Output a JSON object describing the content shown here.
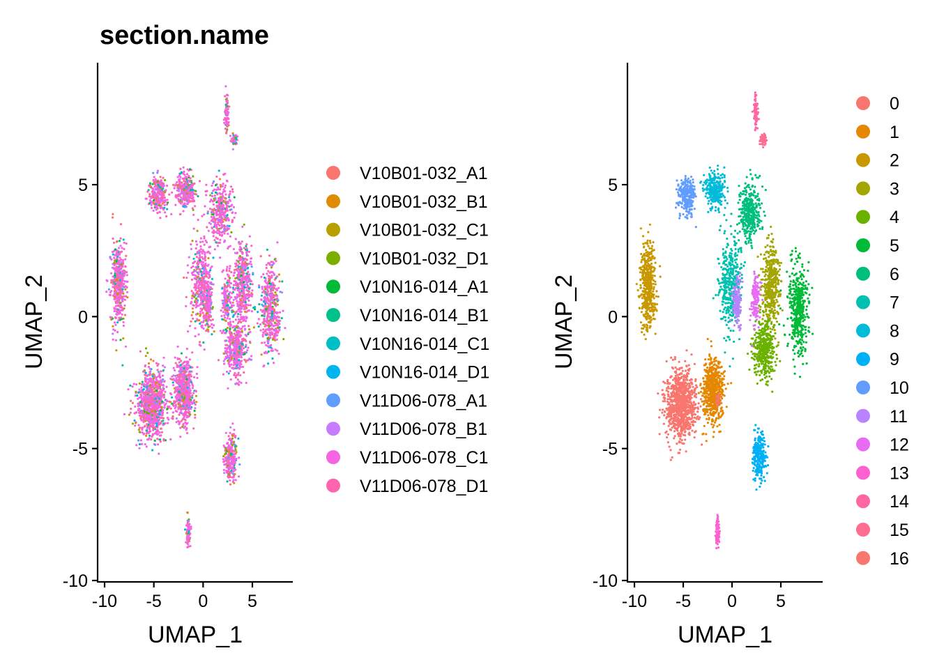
{
  "chart_data": [
    {
      "type": "scatter",
      "title": "section.name",
      "xlabel": "UMAP_1",
      "ylabel": "UMAP_2",
      "xticks": [
        -10,
        -5,
        0,
        5
      ],
      "yticks": [
        -10,
        -5,
        0,
        5
      ],
      "xlim": [
        -10.5,
        9.2
      ],
      "ylim": [
        -10.1,
        9.3
      ],
      "grid": false,
      "legend_position": "right",
      "series": [
        {
          "name": "V10B01-032_A1",
          "color": "#F8766D"
        },
        {
          "name": "V10B01-032_B1",
          "color": "#DE8C00"
        },
        {
          "name": "V10B01-032_C1",
          "color": "#B79F00"
        },
        {
          "name": "V10B01-032_D1",
          "color": "#7CAE00"
        },
        {
          "name": "V10N16-014_A1",
          "color": "#00BA38"
        },
        {
          "name": "V10N16-014_B1",
          "color": "#00C08B"
        },
        {
          "name": "V10N16-014_C1",
          "color": "#00BFC4"
        },
        {
          "name": "V10N16-014_D1",
          "color": "#00B4F0"
        },
        {
          "name": "V11D06-078_A1",
          "color": "#619CFF"
        },
        {
          "name": "V11D06-078_B1",
          "color": "#C77CFF"
        },
        {
          "name": "V11D06-078_C1",
          "color": "#F564E3"
        },
        {
          "name": "V11D06-078_D1",
          "color": "#FF64B0"
        }
      ]
    },
    {
      "type": "scatter",
      "title": "",
      "xlabel": "UMAP_1",
      "ylabel": "UMAP_2",
      "xticks": [
        -10,
        -5,
        0,
        5
      ],
      "yticks": [
        -10,
        -5,
        0,
        5
      ],
      "xlim": [
        -10.5,
        9.2
      ],
      "ylim": [
        -10.1,
        9.3
      ],
      "grid": false,
      "legend_position": "right",
      "series": [
        {
          "name": "0",
          "color": "#F8766D"
        },
        {
          "name": "1",
          "color": "#E58700"
        },
        {
          "name": "2",
          "color": "#C99800"
        },
        {
          "name": "3",
          "color": "#A3A500"
        },
        {
          "name": "4",
          "color": "#6BB100"
        },
        {
          "name": "5",
          "color": "#00BA38"
        },
        {
          "name": "6",
          "color": "#00BF7D"
        },
        {
          "name": "7",
          "color": "#00C0AF"
        },
        {
          "name": "8",
          "color": "#00BCD8"
        },
        {
          "name": "9",
          "color": "#00B0F6"
        },
        {
          "name": "10",
          "color": "#619CFF"
        },
        {
          "name": "11",
          "color": "#B983FF"
        },
        {
          "name": "12",
          "color": "#E76BF3"
        },
        {
          "name": "13",
          "color": "#FD61D1"
        },
        {
          "name": "14",
          "color": "#FF67A4"
        },
        {
          "name": "15",
          "color": "#FF6C91"
        },
        {
          "name": "16",
          "color": "#F8766D"
        }
      ],
      "clusters": [
        {
          "label": "0",
          "cx": -5.2,
          "cy": -3.3,
          "sx": 1.4,
          "sy": 1.2,
          "n": 900
        },
        {
          "label": "1",
          "cx": -2.0,
          "cy": -2.8,
          "sx": 0.9,
          "sy": 1.1,
          "n": 600
        },
        {
          "label": "2",
          "cx": -8.6,
          "cy": 1.2,
          "sx": 0.7,
          "sy": 1.5,
          "n": 450
        },
        {
          "label": "3",
          "cx": 4.0,
          "cy": 1.2,
          "sx": 0.8,
          "sy": 1.4,
          "n": 420
        },
        {
          "label": "4",
          "cx": 3.3,
          "cy": -1.2,
          "sx": 1.0,
          "sy": 1.0,
          "n": 400
        },
        {
          "label": "5",
          "cx": 6.8,
          "cy": 0.3,
          "sx": 0.9,
          "sy": 1.5,
          "n": 450
        },
        {
          "label": "6",
          "cx": 1.8,
          "cy": 4.0,
          "sx": 1.0,
          "sy": 1.0,
          "n": 350
        },
        {
          "label": "7",
          "cx": -0.2,
          "cy": 1.2,
          "sx": 1.0,
          "sy": 1.6,
          "n": 380
        },
        {
          "label": "8",
          "cx": -1.8,
          "cy": 4.8,
          "sx": 0.9,
          "sy": 0.6,
          "n": 300
        },
        {
          "label": "9",
          "cx": 2.8,
          "cy": -5.3,
          "sx": 0.6,
          "sy": 0.8,
          "n": 250
        },
        {
          "label": "10",
          "cx": -4.6,
          "cy": 4.6,
          "sx": 0.8,
          "sy": 0.6,
          "n": 260
        },
        {
          "label": "11",
          "cx": 0.5,
          "cy": 0.6,
          "sx": 0.4,
          "sy": 0.8,
          "n": 150
        },
        {
          "label": "12",
          "cx": 2.4,
          "cy": 0.6,
          "sx": 0.4,
          "sy": 0.9,
          "n": 150
        },
        {
          "label": "13",
          "cx": -1.5,
          "cy": -8.2,
          "sx": 0.2,
          "sy": 0.5,
          "n": 80
        },
        {
          "label": "14",
          "cx": 2.4,
          "cy": 7.7,
          "sx": 0.2,
          "sy": 0.6,
          "n": 80
        },
        {
          "label": "15",
          "cx": 3.2,
          "cy": 6.7,
          "sx": 0.3,
          "sy": 0.2,
          "n": 60
        },
        {
          "label": "16",
          "cx": -1.4,
          "cy": -3.2,
          "sx": 0.3,
          "sy": 0.3,
          "n": 20
        }
      ]
    }
  ]
}
